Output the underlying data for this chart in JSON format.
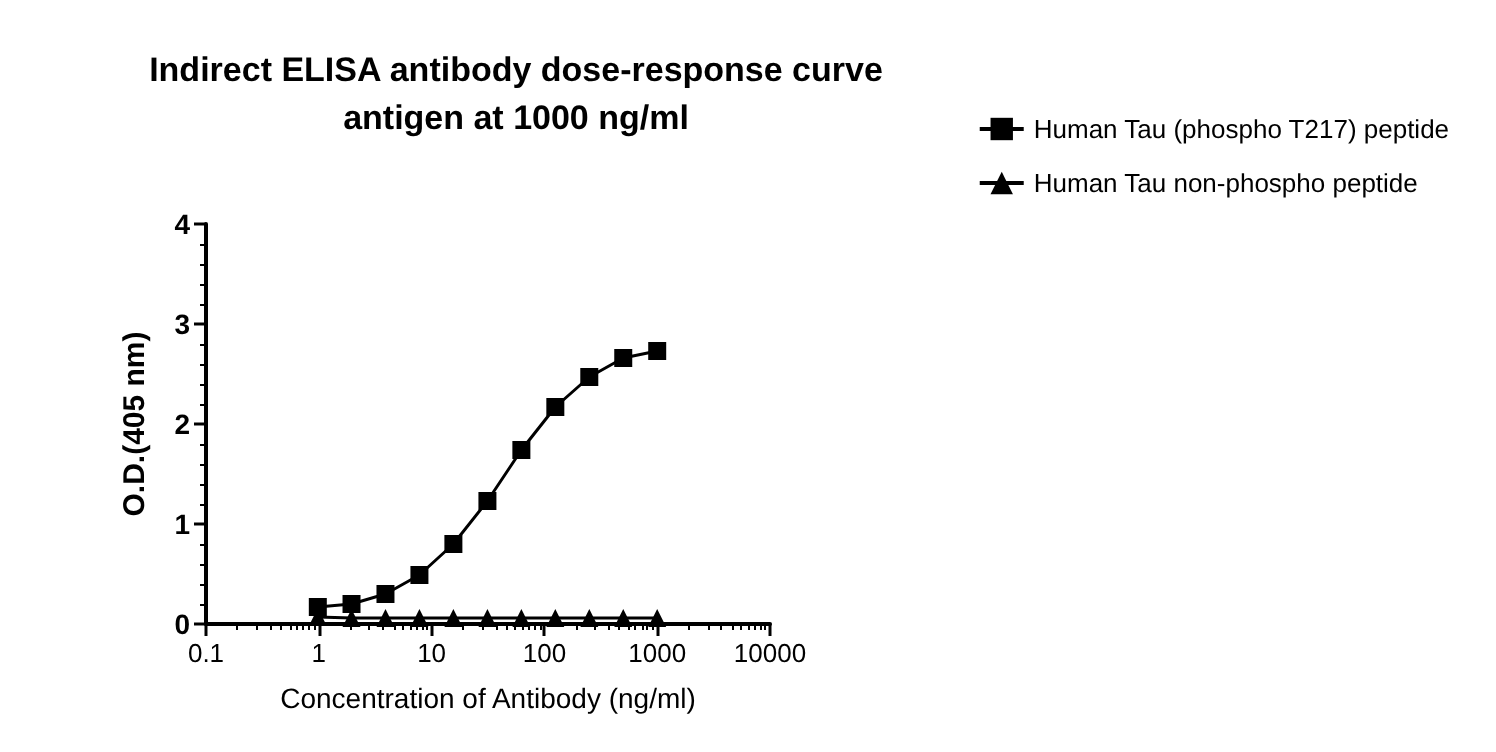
{
  "chart_data": {
    "type": "line",
    "title": "Indirect ELISA antibody dose-response curve\nantigen at 1000 ng/ml",
    "xlabel": "Concentration of Antibody (ng/ml)",
    "ylabel": "O.D.(405 nm)",
    "log": "x",
    "xlim": [
      0.1,
      10000
    ],
    "xticks": [
      0.1,
      1,
      10,
      100,
      1000,
      10000
    ],
    "ylim": [
      0,
      4
    ],
    "yticks": [
      0,
      1,
      2,
      3,
      4
    ],
    "grid": false,
    "legend": "top right",
    "line_style": "solid",
    "series": [
      {
        "name": "Human Tau (phospho T217) peptide",
        "color": "#000000",
        "marker": "square",
        "x": [
          0.98,
          1.95,
          3.9,
          7.8,
          15.6,
          31.25,
          62.5,
          125,
          250,
          500,
          1000
        ],
        "values": [
          0.17,
          0.2,
          0.3,
          0.49,
          0.8,
          1.23,
          1.74,
          2.17,
          2.47,
          2.66,
          2.73
        ]
      },
      {
        "name": "Human Tau non-phospho peptide",
        "color": "#000000",
        "marker": "triangle",
        "x": [
          0.98,
          1.95,
          3.9,
          7.8,
          15.6,
          31.25,
          62.5,
          125,
          250,
          500,
          1000
        ],
        "values": [
          0.07,
          0.06,
          0.06,
          0.06,
          0.06,
          0.06,
          0.06,
          0.06,
          0.06,
          0.06,
          0.06
        ]
      }
    ]
  }
}
